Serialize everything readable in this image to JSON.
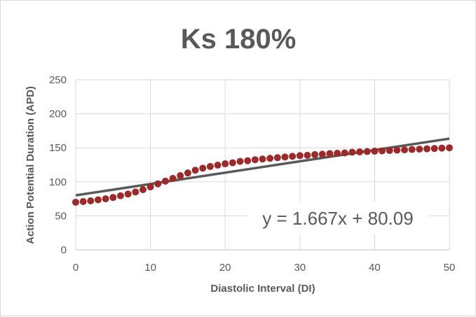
{
  "chart_data": {
    "type": "scatter",
    "title": "Ks 180%",
    "xlabel": "Diastolic Interval (DI)",
    "ylabel": "Action Potential Duration (APD)",
    "xlim": [
      0,
      50
    ],
    "ylim": [
      0,
      250
    ],
    "x_ticks": [
      "0",
      "10",
      "20",
      "30",
      "40",
      "50"
    ],
    "y_ticks": [
      "0",
      "50",
      "100",
      "150",
      "200",
      "250"
    ],
    "grid": true,
    "legend": "none",
    "series": [
      {
        "color": "#9b2a2a",
        "points": [
          [
            0,
            70
          ],
          [
            1,
            71
          ],
          [
            2,
            72
          ],
          [
            3,
            73.5
          ],
          [
            4,
            75
          ],
          [
            5,
            77
          ],
          [
            6,
            79.5
          ],
          [
            7,
            82
          ],
          [
            8,
            85
          ],
          [
            9,
            88.5
          ],
          [
            10,
            92.5
          ],
          [
            11,
            97
          ],
          [
            12,
            101
          ],
          [
            13,
            105
          ],
          [
            14,
            109
          ],
          [
            15,
            113
          ],
          [
            16,
            117
          ],
          [
            17,
            120
          ],
          [
            18,
            122.5
          ],
          [
            19,
            124.5
          ],
          [
            20,
            126.5
          ],
          [
            21,
            128
          ],
          [
            22,
            130
          ],
          [
            23,
            131
          ],
          [
            24,
            132.5
          ],
          [
            25,
            133.5
          ],
          [
            26,
            134.5
          ],
          [
            27,
            135.5
          ],
          [
            28,
            136.5
          ],
          [
            29,
            137.5
          ],
          [
            30,
            138.5
          ],
          [
            31,
            139
          ],
          [
            32,
            140
          ],
          [
            33,
            140.5
          ],
          [
            34,
            141.5
          ],
          [
            35,
            142
          ],
          [
            36,
            142.5
          ],
          [
            37,
            143.5
          ],
          [
            38,
            144
          ],
          [
            39,
            144.5
          ],
          [
            40,
            145
          ],
          [
            41,
            145.5
          ],
          [
            42,
            146
          ],
          [
            43,
            146.5
          ],
          [
            44,
            147
          ],
          [
            45,
            147.5
          ],
          [
            46,
            148
          ],
          [
            47,
            148.5
          ],
          [
            48,
            149
          ],
          [
            49,
            149.5
          ],
          [
            50,
            150
          ]
        ]
      }
    ],
    "trendline": {
      "slope": 1.667,
      "intercept": 80.09,
      "color": "#595959",
      "equation": "y = 1.667x + 80.09"
    }
  }
}
